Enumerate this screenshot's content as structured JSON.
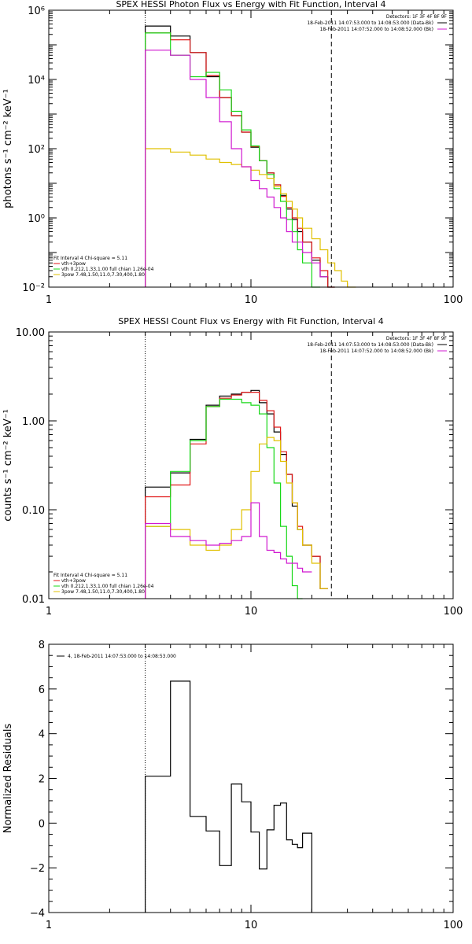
{
  "colors": {
    "data": "#000000",
    "total": "#e01818",
    "thermal": "#18d818",
    "power": "#e0c000",
    "background": "#d018d0",
    "axis": "#000000"
  },
  "chart_data": [
    {
      "type": "line",
      "title": "SPEX HESSI Photon Flux vs Energy with Fit Function, Interval 4",
      "ylabel": "photons s⁻¹ cm⁻² keV⁻¹",
      "xlabel": "",
      "xscale": "log",
      "yscale": "log",
      "xlim": [
        1,
        100
      ],
      "ylim": [
        0.01,
        1000000
      ],
      "xticks": [
        1,
        10,
        100
      ],
      "xtick_labels": [
        "1",
        "10",
        "100"
      ],
      "yticks": [
        0.01,
        1,
        100,
        10000,
        1000000
      ],
      "ytick_labels": [
        "10⁻²",
        "10⁰",
        "10²",
        "10⁴",
        "10⁶"
      ],
      "detectors": "Detectors: 1F 3F 4F 8F 9F",
      "time_ranges": [
        "18-Feb-2011 14:07:53.000 to 14:08:53.000 (Data-Bk)",
        "18-Feb-2011 14:07:52.000 to 14:08:52.000 (Bk)"
      ],
      "legend": [
        "Fit Interval 4    Chi-square = 5.11",
        "vth+3pow",
        "vth 0.212,1.33,1.00  full chian 1.26e-04",
        "3pow 7.48,1.50,11.0,7.30,400,1.80"
      ],
      "edges": [
        3,
        4,
        5,
        6,
        7,
        8,
        9,
        10,
        11,
        12,
        13,
        14,
        15,
        16,
        17,
        18,
        20,
        22,
        24,
        26,
        28,
        30,
        33,
        36,
        40
      ],
      "series": [
        {
          "name": "Data",
          "key": "data",
          "values": [
            350000,
            180000,
            60000,
            12000,
            3000,
            900,
            300,
            110,
            45,
            20,
            9,
            4.5,
            1.8,
            0.9,
            0.4,
            0.2,
            0.06,
            0.02,
            0.01,
            null,
            null,
            null,
            null,
            null
          ]
        },
        {
          "name": "vth+3pow",
          "key": "total",
          "values": [
            220000,
            140000,
            60000,
            13000,
            3000,
            900,
            300,
            115,
            45,
            20,
            9,
            4.2,
            2,
            1,
            0.5,
            0.2,
            0.07,
            0.03,
            0.01,
            null,
            null,
            null,
            null,
            null
          ]
        },
        {
          "name": "vth",
          "key": "thermal",
          "values": [
            220000,
            50000,
            12000,
            16000,
            5000,
            1200,
            350,
            120,
            45,
            18,
            7,
            3,
            0.9,
            0.4,
            0.12,
            0.05,
            0.01,
            null,
            null,
            null,
            null,
            null,
            null,
            null
          ]
        },
        {
          "name": "3pow",
          "key": "power",
          "values": [
            100,
            80,
            65,
            50,
            40,
            35,
            30,
            24,
            18,
            14,
            8,
            5,
            3,
            1.8,
            1,
            0.5,
            0.25,
            0.12,
            0.05,
            0.03,
            0.015,
            0.01,
            null,
            null
          ]
        },
        {
          "name": "Bk",
          "key": "background",
          "values": [
            70000,
            50000,
            10000,
            3000,
            600,
            100,
            30,
            12,
            7,
            4,
            2,
            1,
            0.4,
            0.2,
            0.2,
            0.1,
            0.05,
            0.02,
            null,
            null,
            null,
            null,
            null,
            null
          ]
        }
      ]
    },
    {
      "type": "line",
      "title": "SPEX HESSI Count Flux vs Energy with Fit Function, Interval 4",
      "ylabel": "counts s⁻¹ cm⁻² keV⁻¹",
      "xlabel": "",
      "xscale": "log",
      "yscale": "log",
      "xlim": [
        1,
        100
      ],
      "ylim": [
        0.01,
        10
      ],
      "xticks": [
        1,
        10,
        100
      ],
      "xtick_labels": [
        "1",
        "10",
        "100"
      ],
      "yticks": [
        0.01,
        0.1,
        1,
        10
      ],
      "ytick_labels": [
        "0.01",
        "0.10",
        "1.00",
        "10.00"
      ],
      "detectors": "Detectors: 1F 3F 4F 8F 9F",
      "time_ranges": [
        "18-Feb-2011 14:07:53.000 to 14:08:53.000 (Data-Bk)",
        "18-Feb-2011 14:07:52.000 to 14:08:52.000 (Bk)"
      ],
      "legend": [
        "Fit Interval 4    Chi-square = 5.11",
        "vth+3pow",
        "vth 0.212,1.33,1.00  full chian 1.26e-04",
        "3pow 7.48,1.50,11.0,7.30,400,1.80"
      ],
      "edges": [
        3,
        4,
        5,
        6,
        7,
        8,
        9,
        10,
        11,
        12,
        13,
        14,
        15,
        16,
        17,
        18,
        20,
        22,
        24,
        26,
        28,
        30
      ],
      "series": [
        {
          "name": "Data",
          "key": "data",
          "values": [
            0.18,
            0.26,
            0.62,
            1.5,
            1.9,
            2.0,
            2.1,
            2.2,
            1.6,
            1.2,
            0.75,
            0.42,
            0.25,
            0.11,
            0.06,
            0.04,
            0.03,
            0.013,
            null,
            null,
            null
          ]
        },
        {
          "name": "vth+3pow",
          "key": "total",
          "values": [
            0.14,
            0.19,
            0.55,
            1.45,
            1.8,
            1.95,
            2.1,
            2.1,
            1.7,
            1.3,
            0.85,
            0.45,
            0.25,
            0.12,
            0.065,
            0.04,
            0.03,
            0.013,
            null,
            null,
            null
          ]
        },
        {
          "name": "vth",
          "key": "thermal",
          "values": [
            0.065,
            0.27,
            0.6,
            1.45,
            1.75,
            1.75,
            1.6,
            1.5,
            1.2,
            0.5,
            0.2,
            0.065,
            0.03,
            0.014,
            0.01,
            null,
            null,
            null,
            null,
            null,
            null
          ]
        },
        {
          "name": "3pow",
          "key": "power",
          "values": [
            0.065,
            0.06,
            0.04,
            0.035,
            0.04,
            0.06,
            0.1,
            0.27,
            0.55,
            0.65,
            0.6,
            0.35,
            0.2,
            0.12,
            0.06,
            0.04,
            0.025,
            0.013,
            null,
            null,
            null
          ]
        },
        {
          "name": "Bk",
          "key": "background",
          "values": [
            0.07,
            0.05,
            0.045,
            0.04,
            0.042,
            0.045,
            0.05,
            0.12,
            0.05,
            0.035,
            0.033,
            0.028,
            0.025,
            0.025,
            0.022,
            0.02,
            null,
            null,
            null,
            null,
            null
          ]
        }
      ]
    },
    {
      "type": "line",
      "title": "",
      "ylabel": "Normalized Residuals",
      "xlabel": "",
      "xscale": "log",
      "yscale": "linear",
      "xlim": [
        1,
        100
      ],
      "ylim": [
        -4,
        8
      ],
      "xticks": [
        1,
        10,
        100
      ],
      "xtick_labels": [
        "1",
        "10",
        "100"
      ],
      "yticks": [
        -4,
        -2,
        0,
        2,
        4,
        6,
        8
      ],
      "ytick_labels": [
        "−4",
        "−2",
        "0",
        "2",
        "4",
        "6",
        "8"
      ],
      "legend": [
        "4, 18-Feb-2011 14:07:53.000 to 14:08:53.000"
      ],
      "edges": [
        3,
        4,
        5,
        6,
        7,
        8,
        9,
        10,
        11,
        12,
        13,
        14,
        15,
        16,
        17,
        18,
        20,
        22,
        24,
        26
      ],
      "series": [
        {
          "name": "4, 18-Feb-2011 14:07:53.000 to 14:08:53.000",
          "key": "data",
          "values": [
            2.1,
            6.35,
            0.3,
            -0.35,
            -1.9,
            1.75,
            0.95,
            -0.4,
            -2.05,
            -0.3,
            0.8,
            0.9,
            -0.75,
            -0.95,
            -1.1,
            -0.45,
            null,
            null,
            null
          ]
        }
      ]
    }
  ]
}
